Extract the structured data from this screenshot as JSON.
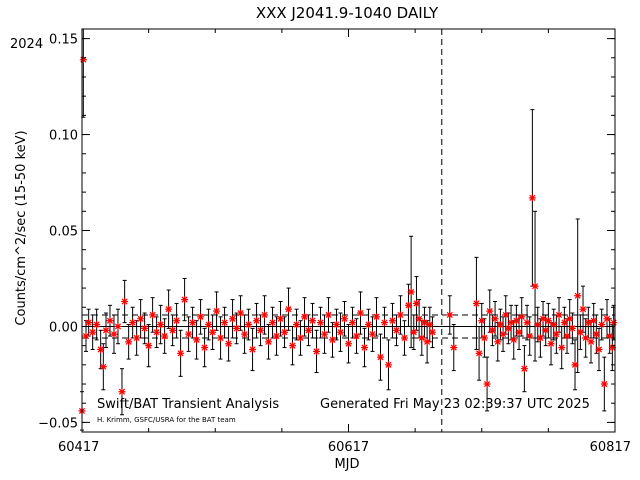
{
  "chart_data": {
    "type": "scatter",
    "title": "XXX J2041.9-1040 DAILY",
    "xlabel": "MJD",
    "ylabel": "Counts/cm^2/sec (15-50 keV)",
    "year_label": "2024",
    "xlim": [
      60417,
      60817
    ],
    "ylim": [
      -0.055,
      0.155
    ],
    "x_ticks": [
      60417,
      60617,
      60817
    ],
    "y_ticks": [
      -0.05,
      0.0,
      0.05,
      0.1,
      0.15
    ],
    "y_tick_labels": [
      "−0.05",
      "0.00",
      "0.05",
      "0.10",
      "0.15"
    ],
    "vertical_line_x": 60687,
    "reference_lines": {
      "mean": 0.0,
      "upper": 0.006,
      "lower": -0.006
    },
    "footer_left": "Swift/BAT Transient Analysis",
    "footer_credit": "H. Krimm, GSFC/USRA for the BAT team",
    "footer_right": "Generated Fri May 23 02:39:37 UTC 2025",
    "marker_color": "#ff0000",
    "series": [
      {
        "points": [
          {
            "x": 60417,
            "y": -0.044,
            "e": 0.01
          },
          {
            "x": 60418,
            "y": 0.139,
            "e": 0.03
          },
          {
            "x": 60420,
            "y": -0.005,
            "e": 0.008
          },
          {
            "x": 60422,
            "y": 0.002,
            "e": 0.007
          },
          {
            "x": 60425,
            "y": -0.003,
            "e": 0.009
          },
          {
            "x": 60428,
            "y": 0.001,
            "e": 0.008
          },
          {
            "x": 60431,
            "y": -0.012,
            "e": 0.01
          },
          {
            "x": 60433,
            "y": -0.021,
            "e": 0.012
          },
          {
            "x": 60435,
            "y": -0.002,
            "e": 0.009
          },
          {
            "x": 60438,
            "y": 0.003,
            "e": 0.008
          },
          {
            "x": 60441,
            "y": -0.004,
            "e": 0.01
          },
          {
            "x": 60444,
            "y": 0.0,
            "e": 0.009
          },
          {
            "x": 60447,
            "y": -0.034,
            "e": 0.012
          },
          {
            "x": 60449,
            "y": 0.013,
            "e": 0.011
          },
          {
            "x": 60452,
            "y": -0.008,
            "e": 0.009
          },
          {
            "x": 60455,
            "y": 0.002,
            "e": 0.008
          },
          {
            "x": 60458,
            "y": -0.006,
            "e": 0.009
          },
          {
            "x": 60461,
            "y": 0.004,
            "e": 0.01
          },
          {
            "x": 60464,
            "y": -0.001,
            "e": 0.008
          },
          {
            "x": 60467,
            "y": -0.01,
            "e": 0.011
          },
          {
            "x": 60470,
            "y": 0.006,
            "e": 0.009
          },
          {
            "x": 60473,
            "y": -0.003,
            "e": 0.008
          },
          {
            "x": 60476,
            "y": 0.001,
            "e": 0.01
          },
          {
            "x": 60479,
            "y": -0.005,
            "e": 0.009
          },
          {
            "x": 60482,
            "y": 0.009,
            "e": 0.01
          },
          {
            "x": 60485,
            "y": -0.002,
            "e": 0.008
          },
          {
            "x": 60488,
            "y": 0.003,
            "e": 0.009
          },
          {
            "x": 60491,
            "y": -0.014,
            "e": 0.012
          },
          {
            "x": 60494,
            "y": 0.014,
            "e": 0.011
          },
          {
            "x": 60497,
            "y": -0.004,
            "e": 0.009
          },
          {
            "x": 60500,
            "y": 0.002,
            "e": 0.008
          },
          {
            "x": 60503,
            "y": -0.007,
            "e": 0.01
          },
          {
            "x": 60506,
            "y": 0.005,
            "e": 0.009
          },
          {
            "x": 60509,
            "y": -0.011,
            "e": 0.01
          },
          {
            "x": 60512,
            "y": 0.001,
            "e": 0.008
          },
          {
            "x": 60515,
            "y": -0.003,
            "e": 0.009
          },
          {
            "x": 60518,
            "y": 0.008,
            "e": 0.01
          },
          {
            "x": 60521,
            "y": -0.006,
            "e": 0.011
          },
          {
            "x": 60524,
            "y": 0.002,
            "e": 0.008
          },
          {
            "x": 60527,
            "y": -0.009,
            "e": 0.009
          },
          {
            "x": 60530,
            "y": 0.004,
            "e": 0.01
          },
          {
            "x": 60533,
            "y": -0.001,
            "e": 0.008
          },
          {
            "x": 60536,
            "y": 0.007,
            "e": 0.009
          },
          {
            "x": 60539,
            "y": -0.004,
            "e": 0.01
          },
          {
            "x": 60542,
            "y": 0.001,
            "e": 0.008
          },
          {
            "x": 60545,
            "y": -0.012,
            "e": 0.011
          },
          {
            "x": 60548,
            "y": 0.003,
            "e": 0.009
          },
          {
            "x": 60551,
            "y": -0.002,
            "e": 0.008
          },
          {
            "x": 60554,
            "y": 0.006,
            "e": 0.01
          },
          {
            "x": 60557,
            "y": -0.008,
            "e": 0.009
          },
          {
            "x": 60560,
            "y": 0.002,
            "e": 0.008
          },
          {
            "x": 60563,
            "y": -0.005,
            "e": 0.01
          },
          {
            "x": 60566,
            "y": 0.004,
            "e": 0.009
          },
          {
            "x": 60569,
            "y": -0.003,
            "e": 0.008
          },
          {
            "x": 60572,
            "y": 0.009,
            "e": 0.011
          },
          {
            "x": 60575,
            "y": -0.01,
            "e": 0.01
          },
          {
            "x": 60578,
            "y": 0.001,
            "e": 0.008
          },
          {
            "x": 60581,
            "y": -0.006,
            "e": 0.009
          },
          {
            "x": 60584,
            "y": 0.005,
            "e": 0.01
          },
          {
            "x": 60587,
            "y": -0.002,
            "e": 0.008
          },
          {
            "x": 60590,
            "y": 0.003,
            "e": 0.009
          },
          {
            "x": 60593,
            "y": -0.013,
            "e": 0.011
          },
          {
            "x": 60596,
            "y": 0.002,
            "e": 0.008
          },
          {
            "x": 60599,
            "y": -0.004,
            "e": 0.01
          },
          {
            "x": 60602,
            "y": 0.006,
            "e": 0.009
          },
          {
            "x": 60605,
            "y": -0.007,
            "e": 0.009
          },
          {
            "x": 60608,
            "y": 0.001,
            "e": 0.008
          },
          {
            "x": 60611,
            "y": -0.003,
            "e": 0.01
          },
          {
            "x": 60614,
            "y": 0.004,
            "e": 0.009
          },
          {
            "x": 60617,
            "y": -0.009,
            "e": 0.01
          },
          {
            "x": 60620,
            "y": 0.002,
            "e": 0.008
          },
          {
            "x": 60623,
            "y": -0.005,
            "e": 0.009
          },
          {
            "x": 60626,
            "y": 0.007,
            "e": 0.011
          },
          {
            "x": 60629,
            "y": -0.011,
            "e": 0.01
          },
          {
            "x": 60632,
            "y": 0.001,
            "e": 0.008
          },
          {
            "x": 60635,
            "y": -0.004,
            "e": 0.009
          },
          {
            "x": 60638,
            "y": 0.005,
            "e": 0.01
          },
          {
            "x": 60641,
            "y": -0.016,
            "e": 0.012
          },
          {
            "x": 60644,
            "y": 0.002,
            "e": 0.008
          },
          {
            "x": 60647,
            "y": -0.02,
            "e": 0.013
          },
          {
            "x": 60650,
            "y": 0.003,
            "e": 0.009
          },
          {
            "x": 60653,
            "y": -0.002,
            "e": 0.008
          },
          {
            "x": 60656,
            "y": 0.006,
            "e": 0.01
          },
          {
            "x": 60659,
            "y": -0.006,
            "e": 0.009
          },
          {
            "x": 60662,
            "y": 0.011,
            "e": 0.011
          },
          {
            "x": 60664,
            "y": 0.018,
            "e": 0.029
          },
          {
            "x": 60666,
            "y": -0.003,
            "e": 0.009
          },
          {
            "x": 60668,
            "y": 0.012,
            "e": 0.014
          },
          {
            "x": 60670,
            "y": 0.004,
            "e": 0.01
          },
          {
            "x": 60672,
            "y": -0.006,
            "e": 0.009
          },
          {
            "x": 60674,
            "y": 0.002,
            "e": 0.008
          },
          {
            "x": 60676,
            "y": -0.008,
            "e": 0.011
          },
          {
            "x": 60678,
            "y": 0.001,
            "e": 0.009
          },
          {
            "x": 60680,
            "y": -0.003,
            "e": 0.008
          },
          {
            "x": 60693,
            "y": 0.006,
            "e": 0.01
          },
          {
            "x": 60696,
            "y": -0.011,
            "e": 0.012
          },
          {
            "x": 60713,
            "y": 0.012,
            "e": 0.024
          },
          {
            "x": 60715,
            "y": -0.014,
            "e": 0.014
          },
          {
            "x": 60717,
            "y": 0.003,
            "e": 0.009
          },
          {
            "x": 60719,
            "y": -0.006,
            "e": 0.01
          },
          {
            "x": 60721,
            "y": -0.03,
            "e": 0.014
          },
          {
            "x": 60723,
            "y": 0.008,
            "e": 0.011
          },
          {
            "x": 60725,
            "y": -0.002,
            "e": 0.008
          },
          {
            "x": 60727,
            "y": 0.004,
            "e": 0.009
          },
          {
            "x": 60729,
            "y": -0.008,
            "e": 0.01
          },
          {
            "x": 60731,
            "y": 0.001,
            "e": 0.008
          },
          {
            "x": 60733,
            "y": -0.004,
            "e": 0.009
          },
          {
            "x": 60735,
            "y": 0.006,
            "e": 0.01
          },
          {
            "x": 60737,
            "y": -0.001,
            "e": 0.008
          },
          {
            "x": 60739,
            "y": 0.002,
            "e": 0.009
          },
          {
            "x": 60741,
            "y": -0.007,
            "e": 0.01
          },
          {
            "x": 60743,
            "y": 0.003,
            "e": 0.008
          },
          {
            "x": 60745,
            "y": -0.003,
            "e": 0.009
          },
          {
            "x": 60747,
            "y": 0.005,
            "e": 0.01
          },
          {
            "x": 60749,
            "y": -0.022,
            "e": 0.012
          },
          {
            "x": 60751,
            "y": 0.002,
            "e": 0.009
          },
          {
            "x": 60753,
            "y": -0.005,
            "e": 0.01
          },
          {
            "x": 60755,
            "y": 0.067,
            "e": 0.046
          },
          {
            "x": 60757,
            "y": 0.021,
            "e": 0.039
          },
          {
            "x": 60759,
            "y": 0.001,
            "e": 0.009
          },
          {
            "x": 60761,
            "y": -0.006,
            "e": 0.01
          },
          {
            "x": 60763,
            "y": 0.004,
            "e": 0.009
          },
          {
            "x": 60765,
            "y": -0.002,
            "e": 0.008
          },
          {
            "x": 60767,
            "y": 0.003,
            "e": 0.009
          },
          {
            "x": 60769,
            "y": -0.009,
            "e": 0.011
          },
          {
            "x": 60771,
            "y": 0.001,
            "e": 0.008
          },
          {
            "x": 60773,
            "y": -0.004,
            "e": 0.01
          },
          {
            "x": 60775,
            "y": 0.006,
            "e": 0.009
          },
          {
            "x": 60777,
            "y": -0.011,
            "e": 0.011
          },
          {
            "x": 60779,
            "y": 0.002,
            "e": 0.008
          },
          {
            "x": 60781,
            "y": -0.005,
            "e": 0.009
          },
          {
            "x": 60783,
            "y": 0.004,
            "e": 0.01
          },
          {
            "x": 60785,
            "y": -0.001,
            "e": 0.008
          },
          {
            "x": 60787,
            "y": -0.02,
            "e": 0.013
          },
          {
            "x": 60789,
            "y": 0.016,
            "e": 0.04
          },
          {
            "x": 60791,
            "y": -0.003,
            "e": 0.009
          },
          {
            "x": 60793,
            "y": 0.009,
            "e": 0.012
          },
          {
            "x": 60795,
            "y": -0.006,
            "e": 0.01
          },
          {
            "x": 60797,
            "y": 0.002,
            "e": 0.008
          },
          {
            "x": 60799,
            "y": -0.008,
            "e": 0.011
          },
          {
            "x": 60801,
            "y": 0.003,
            "e": 0.009
          },
          {
            "x": 60803,
            "y": -0.004,
            "e": 0.01
          },
          {
            "x": 60805,
            "y": -0.012,
            "e": 0.011
          },
          {
            "x": 60807,
            "y": 0.001,
            "e": 0.008
          },
          {
            "x": 60809,
            "y": -0.03,
            "e": 0.014
          },
          {
            "x": 60811,
            "y": 0.004,
            "e": 0.01
          },
          {
            "x": 60813,
            "y": -0.005,
            "e": 0.009
          },
          {
            "x": 60815,
            "y": -0.011,
            "e": 0.012
          },
          {
            "x": 60816,
            "y": 0.002,
            "e": 0.009
          }
        ]
      }
    ]
  }
}
